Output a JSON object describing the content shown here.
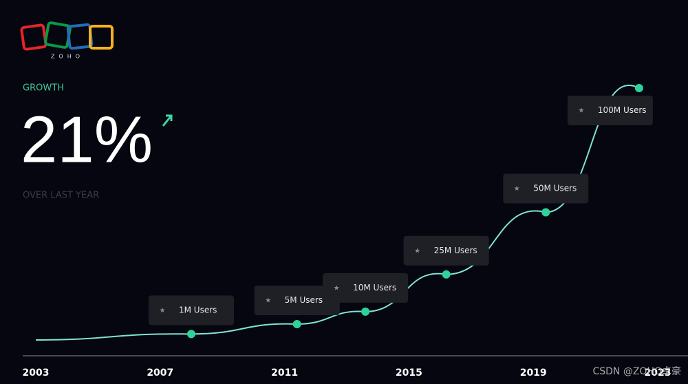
{
  "logo": {
    "text": "ZOHO"
  },
  "headline": {
    "label": "GROWTH",
    "value": "21%",
    "caption": "OVER LAST YEAR"
  },
  "watermark": "CSDN @ZOHO卓豪",
  "chart_data": {
    "type": "line",
    "x": [
      2008,
      2011.4,
      2013.6,
      2016.2,
      2019.4,
      2022.4
    ],
    "series": [
      {
        "color": "#7fe3d3",
        "values": [
          1,
          5,
          10,
          25,
          50,
          100
        ],
        "value_labels": [
          "1M Users",
          "5M Users",
          "10M Users",
          "25M Users",
          "50M Users",
          "100M Users"
        ]
      }
    ],
    "xlim": [
      2003,
      2023
    ],
    "xticks": [
      2003,
      2007,
      2011,
      2015,
      2019,
      2023
    ],
    "marker_color": "#2ed39c"
  }
}
